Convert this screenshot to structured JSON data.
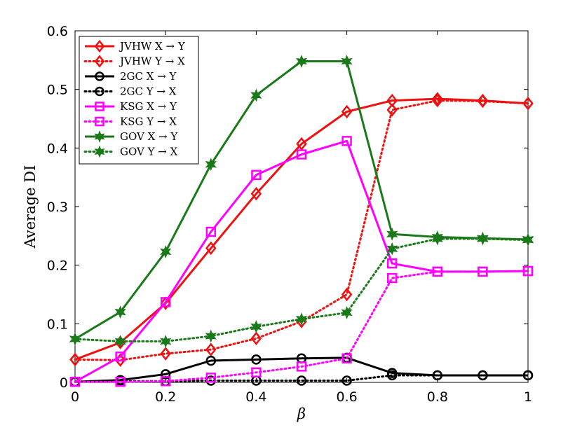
{
  "chart_data": {
    "type": "line",
    "title": "",
    "xlabel": "β",
    "ylabel": "Average DI",
    "xlim": [
      0,
      1
    ],
    "ylim": [
      0,
      0.6
    ],
    "x_ticks": [
      "0",
      "0.2",
      "0.4",
      "0.6",
      "0.8",
      "1"
    ],
    "y_ticks": [
      "0",
      "0.1",
      "0.2",
      "0.3",
      "0.4",
      "0.5",
      "0.6"
    ],
    "grid": false,
    "legend_position": "top-left",
    "x": [
      0,
      0.1,
      0.2,
      0.3,
      0.4,
      0.5,
      0.6,
      0.7,
      0.8,
      0.9,
      1.0
    ],
    "series": [
      {
        "name": "JVHW X → Y",
        "color": "#ee1111",
        "style": "solid",
        "marker": "diamond",
        "values": [
          0.039,
          0.068,
          0.135,
          0.229,
          0.322,
          0.407,
          0.462,
          0.481,
          0.484,
          0.481,
          0.476
        ]
      },
      {
        "name": "JVHW Y → X",
        "color": "#ee1111",
        "style": "dotted",
        "marker": "diamond",
        "values": [
          0.039,
          0.038,
          0.049,
          0.056,
          0.075,
          0.104,
          0.15,
          0.465,
          0.481,
          0.48,
          0.476
        ]
      },
      {
        "name": "2GC X → Y",
        "color": "#000000",
        "style": "solid",
        "marker": "circle",
        "values": [
          0.001,
          0.004,
          0.014,
          0.037,
          0.039,
          0.041,
          0.042,
          0.016,
          0.012,
          0.012,
          0.012
        ]
      },
      {
        "name": "2GC Y → X",
        "color": "#000000",
        "style": "dotted",
        "marker": "circle",
        "values": [
          0.001,
          0.002,
          0.002,
          0.003,
          0.003,
          0.003,
          0.003,
          0.012,
          0.012,
          0.012,
          0.012
        ]
      },
      {
        "name": "KSG X → Y",
        "color": "#ff00ff",
        "style": "solid",
        "marker": "square",
        "values": [
          0.001,
          0.044,
          0.137,
          0.257,
          0.354,
          0.389,
          0.412,
          0.203,
          0.189,
          0.189,
          0.19
        ]
      },
      {
        "name": "KSG Y → X",
        "color": "#ff00ff",
        "style": "dotted",
        "marker": "square",
        "values": [
          0.001,
          0.001,
          0.002,
          0.008,
          0.017,
          0.027,
          0.041,
          0.178,
          0.189,
          0.189,
          0.19
        ]
      },
      {
        "name": "GOV X → Y",
        "color": "#1a7a1a",
        "style": "solid",
        "marker": "star",
        "values": [
          0.074,
          0.12,
          0.223,
          0.372,
          0.49,
          0.548,
          0.548,
          0.253,
          0.248,
          0.246,
          0.244
        ]
      },
      {
        "name": "GOV Y → X",
        "color": "#1a7a1a",
        "style": "dotted",
        "marker": "star",
        "values": [
          0.074,
          0.07,
          0.07,
          0.079,
          0.095,
          0.108,
          0.119,
          0.228,
          0.245,
          0.245,
          0.243
        ]
      }
    ]
  }
}
